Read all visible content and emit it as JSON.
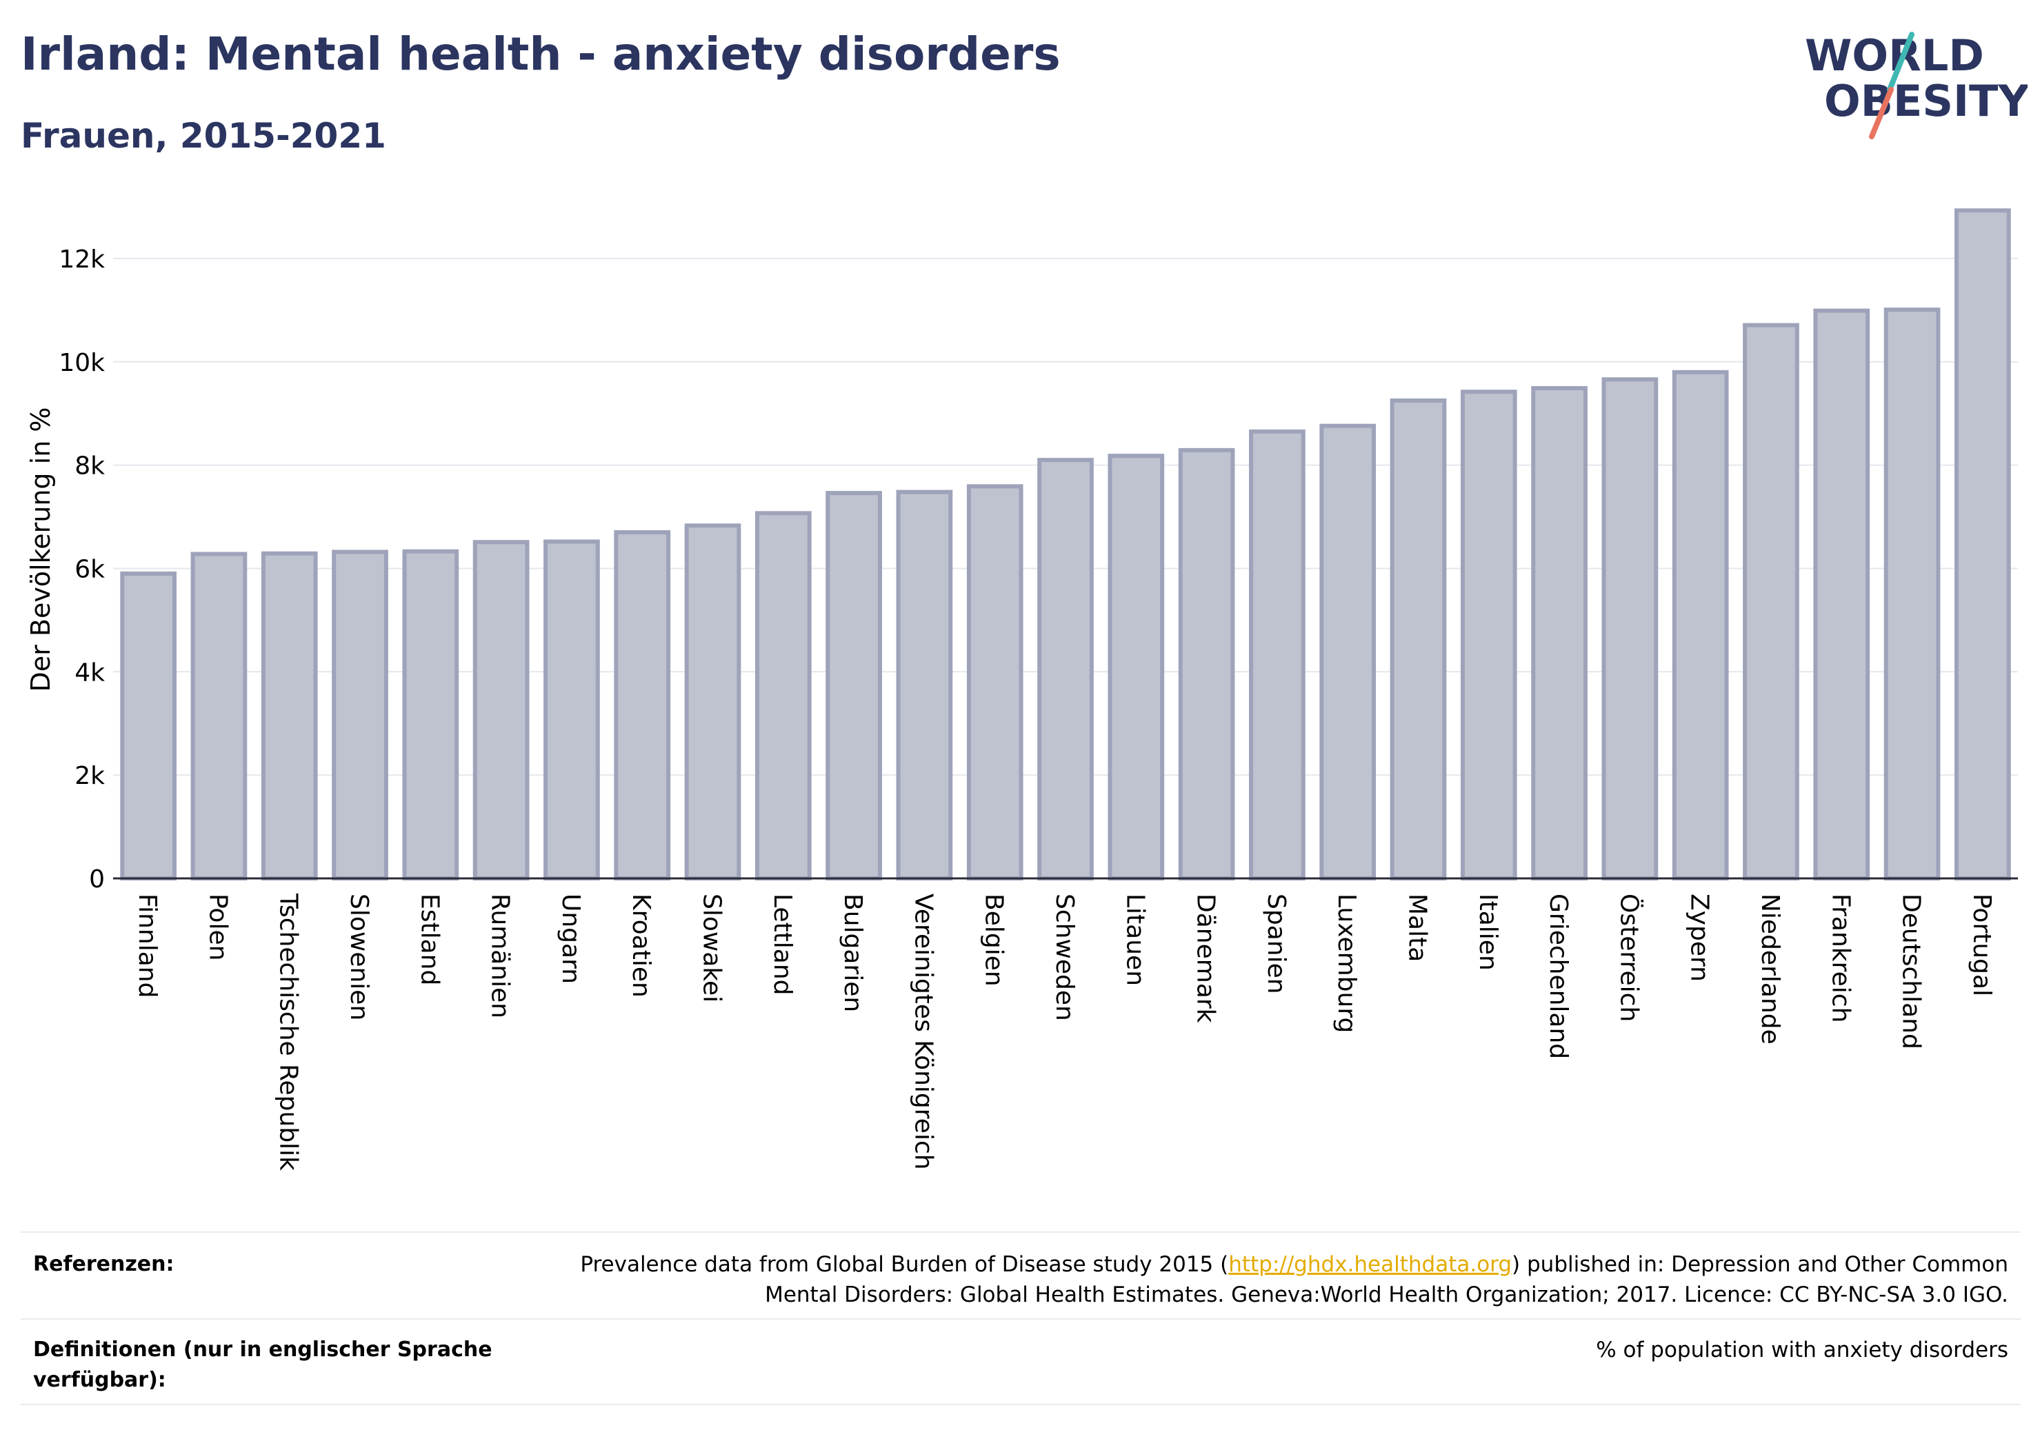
{
  "header": {
    "title": "Irland: Mental health - anxiety disorders",
    "subtitle": "Frauen, 2015-2021"
  },
  "logo": {
    "line1": "WORLD",
    "line2": "OBESITY",
    "icon": "world-obesity-logo"
  },
  "colors": {
    "bar_fill": "#bfc2cf",
    "bar_stroke": "#9ea3ba",
    "title": "#2b3560",
    "link": "#e3ab00"
  },
  "chart_data": {
    "type": "bar",
    "title": "Irland: Mental health - anxiety disorders",
    "subtitle": "Frauen, 2015-2021",
    "xlabel": "",
    "ylabel": "Der Bevölkerung in %",
    "ylim": [
      0,
      13000
    ],
    "yticks": [
      0,
      2000,
      4000,
      6000,
      8000,
      10000,
      12000
    ],
    "ytick_labels": [
      "0",
      "2k",
      "4k",
      "6k",
      "8k",
      "10k",
      "12k"
    ],
    "grid": true,
    "categories": [
      "Finnland",
      "Polen",
      "Tschechische Republik",
      "Slowenien",
      "Estland",
      "Rumänien",
      "Ungarn",
      "Kroatien",
      "Slowakei",
      "Lettland",
      "Bulgarien",
      "Vereinigtes Königreich",
      "Belgien",
      "Schweden",
      "Litauen",
      "Dänemark",
      "Spanien",
      "Luxemburg",
      "Malta",
      "Italien",
      "Griechenland",
      "Österreich",
      "Zypern",
      "Niederlande",
      "Frankreich",
      "Deutschland",
      "Portugal"
    ],
    "values": [
      5900,
      6280,
      6290,
      6320,
      6330,
      6510,
      6520,
      6700,
      6830,
      7070,
      7460,
      7480,
      7590,
      8100,
      8180,
      8290,
      8650,
      8760,
      9250,
      9420,
      9490,
      9660,
      9800,
      10710,
      10990,
      11010,
      12930
    ]
  },
  "footer": {
    "references_label": "Referenzen:",
    "references_text_before": "Prevalence data from Global Burden of Disease study 2015 (",
    "references_link": "http://ghdx.healthdata.org",
    "references_text_after": ") published in: Depression and Other Common",
    "references_line2": "Mental Disorders: Global Health Estimates. Geneva:World Health Organization; 2017. Licence: CC BY-NC-SA 3.0 IGO.",
    "definitions_label": "Definitionen (nur in englischer Sprache verfügbar):",
    "definitions_text": "% of population with anxiety disorders"
  }
}
